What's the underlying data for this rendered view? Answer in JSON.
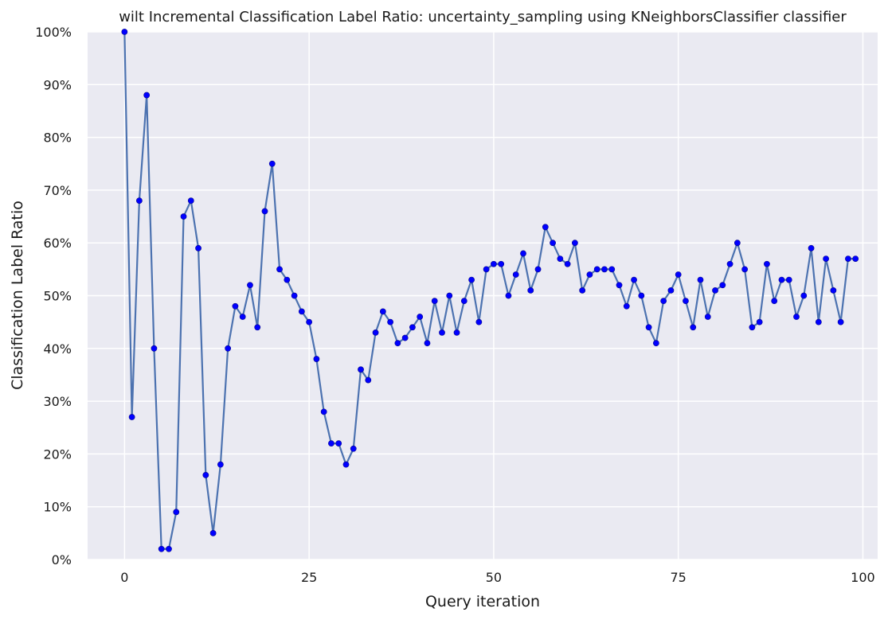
{
  "chart_data": {
    "type": "line",
    "title": "wilt Incremental Classification Label Ratio: uncertainty_sampling using KNeighborsClassifier classifier",
    "xlabel": "Query iteration",
    "ylabel": "Classification Label Ratio",
    "xlim": [
      -5,
      102
    ],
    "ylim": [
      0,
      100
    ],
    "x_ticks": [
      0,
      25,
      50,
      75,
      100
    ],
    "x_tick_labels": [
      "0",
      "25",
      "50",
      "75",
      "100"
    ],
    "y_ticks": [
      0,
      10,
      20,
      30,
      40,
      50,
      60,
      70,
      80,
      90,
      100
    ],
    "y_tick_labels": [
      "0%",
      "10%",
      "20%",
      "30%",
      "40%",
      "50%",
      "60%",
      "70%",
      "80%",
      "90%",
      "100%"
    ],
    "grid": true,
    "colors": {
      "background": "#eaeaf2",
      "grid": "#ffffff",
      "line": "#4c72b0",
      "marker": "#0000ff"
    },
    "series": [
      {
        "x": [
          0,
          1,
          2,
          3,
          4,
          5,
          6,
          7,
          8,
          9,
          10,
          11,
          12,
          13,
          14,
          15,
          16,
          17,
          18,
          19,
          20,
          21,
          22,
          23,
          24,
          25,
          26,
          27,
          28,
          29,
          30,
          31,
          32,
          33,
          34,
          35,
          36,
          37,
          38,
          39,
          40,
          41,
          42,
          43,
          44,
          45,
          46,
          47,
          48,
          49,
          50,
          51,
          52,
          53,
          54,
          55,
          56,
          57,
          58,
          59,
          60,
          61,
          62,
          63,
          64,
          65,
          66,
          67,
          68,
          69,
          70,
          71,
          72,
          73,
          74,
          75,
          76,
          77,
          78,
          79,
          80,
          81,
          82,
          83,
          84,
          85,
          86,
          87,
          88,
          89,
          90,
          91,
          92,
          93,
          94,
          95,
          96,
          97,
          98,
          99
        ],
        "values": [
          100,
          27,
          68,
          88,
          40,
          2,
          2,
          9,
          65,
          68,
          59,
          16,
          5,
          18,
          40,
          48,
          46,
          52,
          44,
          66,
          75,
          55,
          53,
          50,
          47,
          45,
          38,
          28,
          22,
          22,
          18,
          21,
          36,
          34,
          43,
          47,
          45,
          41,
          42,
          44,
          46,
          41,
          49,
          43,
          50,
          43,
          49,
          53,
          45,
          55,
          56,
          56,
          50,
          54,
          58,
          51,
          55,
          63,
          60,
          57,
          56,
          60,
          51,
          54,
          55,
          55,
          55,
          52,
          48,
          53,
          50,
          44,
          41,
          49,
          51,
          54,
          49,
          44,
          53,
          46,
          51,
          52,
          56,
          60,
          55,
          44,
          45,
          56,
          49,
          53,
          53,
          46,
          50,
          59,
          45,
          57,
          51,
          45,
          57,
          57
        ]
      }
    ]
  }
}
